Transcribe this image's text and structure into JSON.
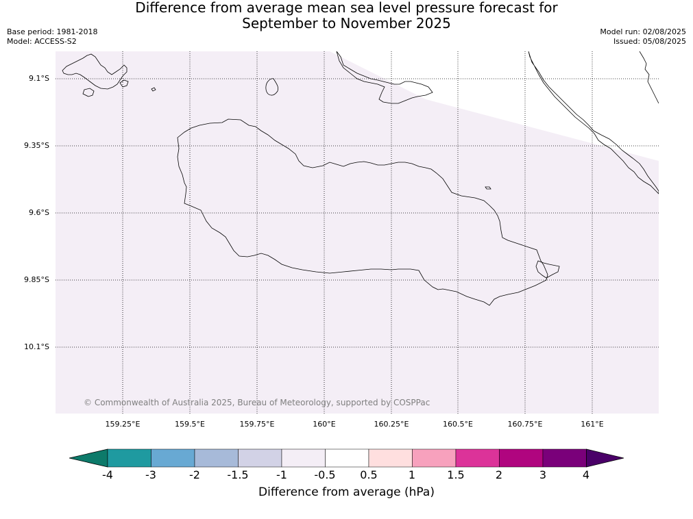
{
  "title_line1": "Difference from average mean sea level pressure forecast for",
  "title_line2": "September to November 2025",
  "base_period": "Base period: 1981-2018",
  "model": "Model: ACCESS-S2",
  "model_run": "Model run: 02/08/2025",
  "issued": "Issued: 05/08/2025",
  "lat_labels": [
    "9.1°S",
    "9.35°S",
    "9.6°S",
    "9.85°S",
    "10.1°S"
  ],
  "lon_labels": [
    "159.25°E",
    "159.5°E",
    "159.75°E",
    "160°E",
    "160.25°E",
    "160.5°E",
    "160.75°E",
    "161°E"
  ],
  "copyright": "© Commonwealth of Australia 2025, Bureau of Meteorology, supported by COSPPac",
  "colorbar": {
    "ticks": [
      "-4",
      "-3",
      "-2",
      "-1.5",
      "-1",
      "-0.5",
      "0.5",
      "1",
      "1.5",
      "2",
      "3",
      "4"
    ],
    "colors": [
      "#0d7a6a",
      "#1f9aa0",
      "#68a9d3",
      "#a7bad9",
      "#d2d2e6",
      "#f4eef6",
      "#ffffff",
      "#ffdfdf",
      "#f7a1bd",
      "#dc3399",
      "#b0057f",
      "#7a007a",
      "#4a0068"
    ],
    "label": "Difference from average (hPa)"
  },
  "field_color": "#f4eef6",
  "coast_color": "#000000"
}
